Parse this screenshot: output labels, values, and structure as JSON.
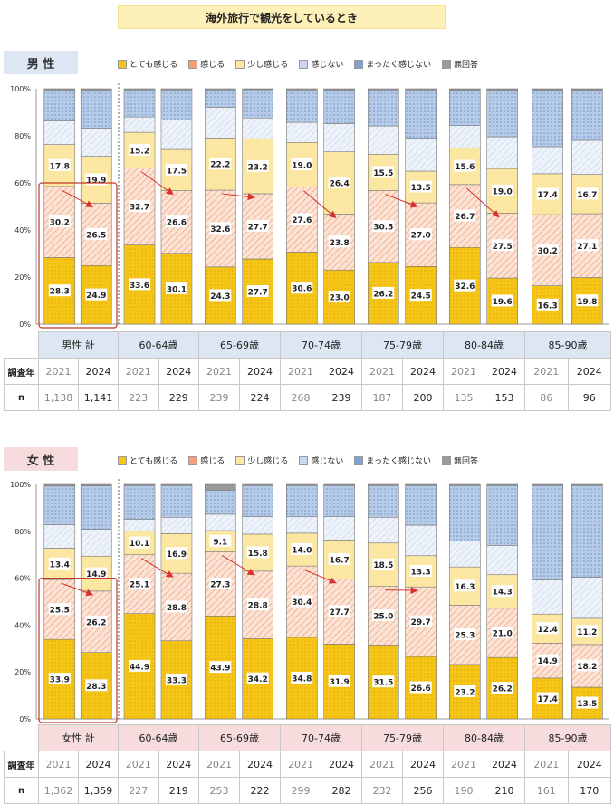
{
  "title": "海外旅行で観光をしているとき",
  "legend": [
    {
      "name": "とても感じる",
      "color": "#f5c518",
      "pattern": "dots"
    },
    {
      "name": "感じる",
      "color": "#f2a07b",
      "pattern": "diag"
    },
    {
      "name": "少し感じる",
      "color": "#fbe7a1",
      "pattern": "plain"
    },
    {
      "name": "感じない",
      "color": "#c9d8ef",
      "pattern": "diag2"
    },
    {
      "name": "まったく感じない",
      "color": "#7ea4d6",
      "pattern": "dots2"
    },
    {
      "name": "無回答",
      "color": "#9a9a9a",
      "pattern": "plain"
    }
  ],
  "table_labels": {
    "year": "調査年",
    "n": "n"
  },
  "colors": {
    "male_header": "#dde6f2",
    "female_header": "#f6dcdc"
  },
  "charts": [
    {
      "gender": "男 性",
      "yticks": [
        "0%",
        "20%",
        "40%",
        "60%",
        "80%",
        "100%"
      ],
      "chart_data": {
        "type": "bar",
        "stacked": true,
        "ylim": [
          0,
          100
        ],
        "categories": [
          "男性 計",
          "60-64歳",
          "65-69歳",
          "70-74歳",
          "75-79歳",
          "80-84歳",
          "85-90歳"
        ],
        "years": [
          "2021",
          "2024"
        ],
        "n": [
          [
            "1,138",
            "1,141"
          ],
          [
            "223",
            "229"
          ],
          [
            "239",
            "224"
          ],
          [
            "268",
            "239"
          ],
          [
            "187",
            "200"
          ],
          [
            "135",
            "153"
          ],
          [
            "86",
            "96"
          ]
        ],
        "bars": [
          [
            28.3,
            30.2,
            17.8,
            10.0,
            13.0,
            0.7
          ],
          [
            24.9,
            26.5,
            19.9,
            12.0,
            16.0,
            0.7
          ],
          [
            33.6,
            32.7,
            15.2,
            6.5,
            11.5,
            0.5
          ],
          [
            30.1,
            26.6,
            17.5,
            12.5,
            12.8,
            0.5
          ],
          [
            24.3,
            32.6,
            22.2,
            13.0,
            7.4,
            0.5
          ],
          [
            27.7,
            27.7,
            23.2,
            9.0,
            12.0,
            0.4
          ],
          [
            30.6,
            27.6,
            19.0,
            8.5,
            13.5,
            0.8
          ],
          [
            23.0,
            23.8,
            26.4,
            12.0,
            14.2,
            0.6
          ],
          [
            26.2,
            30.5,
            15.5,
            12.0,
            15.3,
            0.5
          ],
          [
            24.5,
            27.0,
            13.5,
            14.0,
            20.5,
            0.5
          ],
          [
            32.6,
            26.7,
            15.6,
            9.5,
            15.0,
            0.6
          ],
          [
            19.6,
            27.5,
            19.0,
            13.5,
            19.8,
            0.6
          ],
          [
            16.3,
            30.2,
            17.4,
            11.5,
            24.0,
            0.6
          ],
          [
            19.8,
            27.1,
            16.7,
            14.5,
            21.3,
            0.6
          ]
        ],
        "labels": [
          [
            28.3,
            30.2,
            17.8
          ],
          [
            24.9,
            26.5,
            19.9
          ],
          [
            33.6,
            32.7,
            15.2
          ],
          [
            30.1,
            26.6,
            17.5
          ],
          [
            24.3,
            32.6,
            22.2
          ],
          [
            27.7,
            27.7,
            23.2
          ],
          [
            30.6,
            27.6,
            19.0
          ],
          [
            23.0,
            23.8,
            26.4
          ],
          [
            26.2,
            30.5,
            15.5
          ],
          [
            24.5,
            27.0,
            13.5
          ],
          [
            32.6,
            26.7,
            15.6
          ],
          [
            19.6,
            27.5,
            19.0
          ],
          [
            16.3,
            30.2,
            17.4
          ],
          [
            19.8,
            27.1,
            16.7
          ]
        ]
      }
    },
    {
      "gender": "女 性",
      "yticks": [
        "0%",
        "20%",
        "40%",
        "60%",
        "80%",
        "100%"
      ],
      "chart_data": {
        "type": "bar",
        "stacked": true,
        "ylim": [
          0,
          100
        ],
        "categories": [
          "女性 計",
          "60-64歳",
          "65-69歳",
          "70-74歳",
          "75-79歳",
          "80-84歳",
          "85-90歳"
        ],
        "years": [
          "2021",
          "2024"
        ],
        "n": [
          [
            "1,362",
            "1,359"
          ],
          [
            "227",
            "219"
          ],
          [
            "253",
            "222"
          ],
          [
            "299",
            "282"
          ],
          [
            "232",
            "256"
          ],
          [
            "190",
            "210"
          ],
          [
            "161",
            "170"
          ]
        ],
        "bars": [
          [
            33.9,
            25.5,
            13.4,
            10.0,
            16.5,
            0.7
          ],
          [
            28.3,
            26.2,
            14.9,
            11.5,
            18.5,
            0.6
          ],
          [
            44.9,
            25.1,
            10.1,
            5.0,
            14.4,
            0.5
          ],
          [
            33.3,
            28.8,
            16.9,
            7.0,
            13.5,
            0.5
          ],
          [
            43.9,
            27.3,
            9.1,
            7.0,
            10.2,
            2.5
          ],
          [
            34.2,
            28.8,
            15.8,
            7.5,
            13.2,
            0.5
          ],
          [
            34.8,
            30.4,
            14.0,
            7.0,
            13.3,
            0.5
          ],
          [
            31.9,
            27.7,
            16.7,
            10.0,
            13.2,
            0.5
          ],
          [
            31.5,
            25.0,
            18.5,
            11.0,
            13.5,
            0.5
          ],
          [
            26.6,
            29.7,
            13.3,
            13.0,
            16.9,
            0.5
          ],
          [
            23.2,
            25.3,
            16.3,
            11.0,
            23.7,
            0.5
          ],
          [
            26.2,
            21.0,
            14.3,
            12.5,
            25.5,
            0.5
          ],
          [
            17.4,
            14.9,
            12.4,
            14.5,
            40.3,
            0.5
          ],
          [
            13.5,
            18.2,
            11.2,
            17.5,
            39.1,
            0.5
          ]
        ],
        "labels": [
          [
            33.9,
            25.5,
            13.4
          ],
          [
            28.3,
            26.2,
            14.9
          ],
          [
            44.9,
            25.1,
            10.1
          ],
          [
            33.3,
            28.8,
            16.9
          ],
          [
            43.9,
            27.3,
            9.1
          ],
          [
            34.2,
            28.8,
            15.8
          ],
          [
            34.8,
            30.4,
            14.0
          ],
          [
            31.9,
            27.7,
            16.7
          ],
          [
            31.5,
            25.0,
            18.5
          ],
          [
            26.6,
            29.7,
            13.3
          ],
          [
            23.2,
            25.3,
            16.3
          ],
          [
            26.2,
            21.0,
            14.3
          ],
          [
            17.4,
            14.9,
            12.4
          ],
          [
            13.5,
            18.2,
            11.2
          ]
        ]
      }
    }
  ]
}
